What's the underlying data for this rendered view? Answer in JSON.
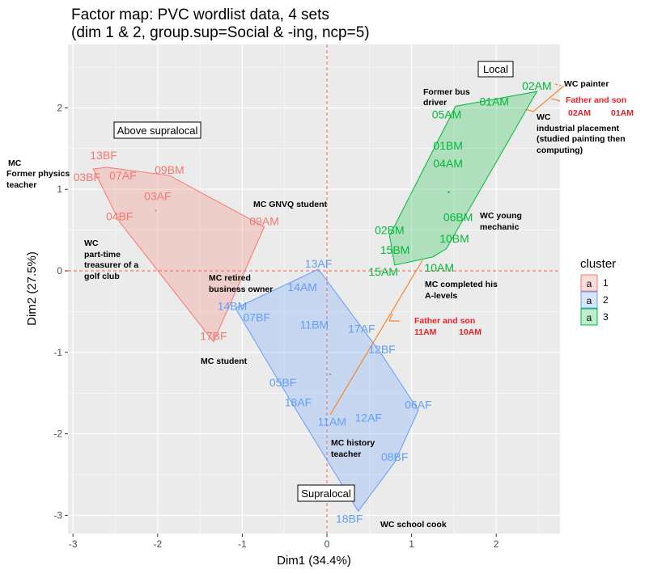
{
  "chart_data": {
    "type": "scatter",
    "title": "Factor map: PVC wordlist data, 4 sets",
    "subtitle": "(dim 1 & 2, group.sup=Social & -ing, ncp=5)",
    "xlabel": "Dim1 (34.4%)",
    "ylabel": "Dim2 (27.5%)",
    "xlim": [
      -3.07,
      2.75
    ],
    "ylim": [
      -3.2,
      2.78
    ],
    "xticks": [
      -3,
      -2,
      -1,
      0,
      1,
      2
    ],
    "yticks": [
      2,
      1,
      0,
      -1,
      -2,
      -3
    ],
    "grid": true,
    "reference_lines": {
      "x": 0,
      "y": 0,
      "style": "dashed",
      "color": "#F8766D"
    },
    "legend": {
      "title": "cluster",
      "placement": "right",
      "entries": [
        "1",
        "2",
        "3"
      ],
      "key_glyph": "a"
    },
    "colors": {
      "1": "#F8766D",
      "2": "#619CFF",
      "3": "#00BA38",
      "trajectory": "#F8862A"
    },
    "series": [
      {
        "name": "1",
        "points": [
          {
            "label": "13BF",
            "x": -2.6,
            "y": 1.27
          },
          {
            "label": "03BF",
            "x": -2.76,
            "y": 1.25
          },
          {
            "label": "07AF",
            "x": -2.41,
            "y": 1.1
          },
          {
            "label": "09BM",
            "x": -1.86,
            "y": 1.17
          },
          {
            "label": "03AF",
            "x": -2.0,
            "y": 0.85
          },
          {
            "label": "04BF",
            "x": -2.45,
            "y": 0.6
          },
          {
            "label": "09AM",
            "x": -0.74,
            "y": 0.54
          },
          {
            "label": "17BF",
            "x": -1.34,
            "y": -0.87
          }
        ]
      },
      {
        "name": "2",
        "points": [
          {
            "label": "13AF",
            "x": -0.1,
            "y": 0.02
          },
          {
            "label": "14BM",
            "x": -1.08,
            "y": -0.46
          },
          {
            "label": "14AM",
            "x": -0.29,
            "y": -0.27
          },
          {
            "label": "07BF",
            "x": -0.83,
            "y": -0.64
          },
          {
            "label": "11BM",
            "x": -0.15,
            "y": -0.73
          },
          {
            "label": "17AF",
            "x": 0.41,
            "y": -0.78
          },
          {
            "label": "12BF",
            "x": 0.65,
            "y": -1.03
          },
          {
            "label": "05BF",
            "x": -0.52,
            "y": -1.44
          },
          {
            "label": "18AF",
            "x": -0.34,
            "y": -1.68
          },
          {
            "label": "11AM",
            "x": 0.06,
            "y": -1.92
          },
          {
            "label": "12AF",
            "x": 0.49,
            "y": -1.87
          },
          {
            "label": "06AF",
            "x": 1.08,
            "y": -1.71
          },
          {
            "label": "08BF",
            "x": 0.8,
            "y": -2.35
          },
          {
            "label": "18BF",
            "x": 0.37,
            "y": -2.95
          }
        ]
      },
      {
        "name": "3",
        "points": [
          {
            "label": "02AM",
            "x": 2.48,
            "y": 2.2
          },
          {
            "label": "01AM",
            "x": 2.35,
            "y": 1.97
          },
          {
            "label": "05AM",
            "x": 1.52,
            "y": 2.02
          },
          {
            "label": "01BM",
            "x": 1.43,
            "y": 1.47
          },
          {
            "label": "04AM",
            "x": 1.43,
            "y": 1.25
          },
          {
            "label": "06BM",
            "x": 1.55,
            "y": 0.59
          },
          {
            "label": "10BM",
            "x": 1.41,
            "y": 0.27
          },
          {
            "label": "02BM",
            "x": 0.74,
            "y": 0.43
          },
          {
            "label": "15BM",
            "x": 0.88,
            "y": 0.19
          },
          {
            "label": "10AM",
            "x": 1.25,
            "y": 0.17
          },
          {
            "label": "15AM",
            "x": 0.8,
            "y": 0.07
          }
        ]
      }
    ],
    "region_labels": [
      "Above supralocal",
      "Local",
      "Supralocal"
    ],
    "annotations": {
      "physics": [
        "MC",
        "Former physics",
        "teacher"
      ],
      "gnvq": [
        "MC GNVQ student"
      ],
      "treasurer": [
        "WC",
        "part-time",
        "treasurer of a",
        "golf club"
      ],
      "retired": [
        "MC retired",
        "business owner"
      ],
      "student": [
        "MC student"
      ],
      "bus": [
        "Former bus",
        "driver"
      ],
      "painter": [
        "WC painter"
      ],
      "industrial": [
        "WC",
        "industrial placement",
        "(studied painting then",
        "computing)"
      ],
      "mechanic": [
        "WC young",
        "mechanic"
      ],
      "alevels": [
        "MC completed his",
        "A-levels"
      ],
      "history": [
        "MC history",
        "teacher"
      ],
      "cook": [
        "WC school cook"
      ],
      "fs_top": [
        "Father and son",
        "02AM",
        "01AM"
      ],
      "fs_mid": [
        "Father and son",
        "11AM",
        "10AM"
      ]
    }
  }
}
